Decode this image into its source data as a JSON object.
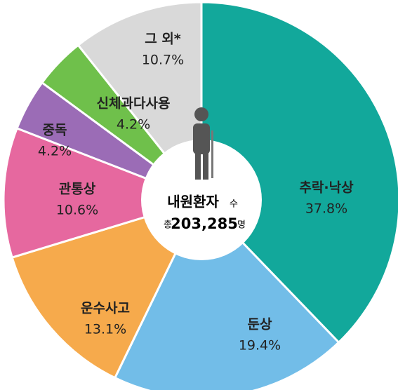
{
  "chart_data": {
    "type": "pie",
    "categories": [
      "추락·낙상",
      "둔상",
      "운수사고",
      "관통상",
      "중독",
      "신체과다사용",
      "그 외*"
    ],
    "values": [
      37.8,
      19.4,
      13.1,
      10.6,
      4.2,
      4.2,
      10.7
    ],
    "value_labels": [
      "37.8%",
      "19.4%",
      "13.1%",
      "10.6%",
      "4.2%",
      "4.2%",
      "10.7%"
    ],
    "colors": [
      "#12a89b",
      "#72bde8",
      "#f6aa4c",
      "#e6689f",
      "#9b6cb6",
      "#6fc04b",
      "#d9d9d9"
    ],
    "center": {
      "label": "내원환자",
      "label_unit": "수",
      "total_prefix": "총",
      "total": "203,285",
      "total_unit": "명"
    }
  }
}
